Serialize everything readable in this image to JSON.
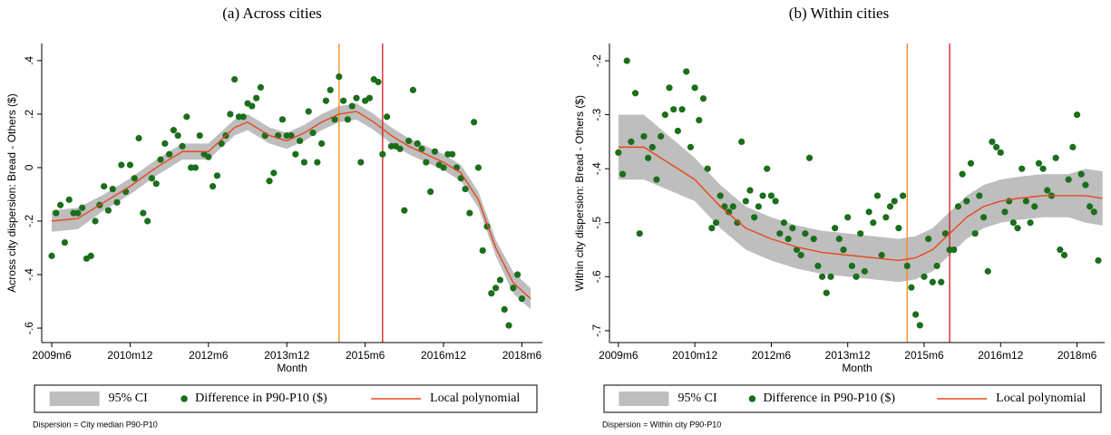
{
  "chart_data": [
    {
      "type": "scatter",
      "title": "(a) Across cities",
      "xlabel": "Month",
      "ylabel": "Across city dispersion: Bread - Others ($)",
      "note": "Dispersion = City median P90-P10",
      "xlim": [
        -2.3,
        112.7
      ],
      "ylim": [
        -0.654,
        0.464
      ],
      "grid": false,
      "xticks": [
        {
          "value": 0,
          "label": "2009m6"
        },
        {
          "value": 18,
          "label": "2010m12"
        },
        {
          "value": 36,
          "label": "2012m6"
        },
        {
          "value": 54,
          "label": "2013m12"
        },
        {
          "value": 72,
          "label": "2015m6"
        },
        {
          "value": 90,
          "label": "2016m12"
        },
        {
          "value": 108,
          "label": "2018m6"
        }
      ],
      "yticks": [
        {
          "value": -0.6,
          "label": "-.6"
        },
        {
          "value": -0.4,
          "label": "-.4"
        },
        {
          "value": -0.2,
          "label": "-.2"
        },
        0,
        {
          "value": 0.2,
          "label": ".2"
        },
        {
          "value": 0.4,
          "label": ".4"
        }
      ],
      "vlines": [
        {
          "x": 66,
          "color": "#f5891f"
        },
        {
          "x": 76,
          "color": "#d7191c"
        }
      ],
      "series": [
        {
          "name": "95% CI",
          "kind": "band",
          "color": "#bebebe",
          "x": [
            0,
            6,
            12,
            18,
            24,
            30,
            36,
            42,
            45,
            50,
            54,
            58,
            62,
            66,
            70,
            74,
            78,
            82,
            86,
            90,
            94,
            98,
            102,
            106,
            110
          ],
          "upper": [
            -0.16,
            -0.15,
            -0.1,
            -0.04,
            0.03,
            0.09,
            0.09,
            0.18,
            0.2,
            0.15,
            0.13,
            0.16,
            0.2,
            0.23,
            0.24,
            0.2,
            0.15,
            0.11,
            0.08,
            0.05,
            0.01,
            -0.09,
            -0.27,
            -0.39,
            -0.45
          ],
          "lower": [
            -0.24,
            -0.23,
            -0.16,
            -0.1,
            -0.03,
            0.03,
            0.03,
            0.12,
            0.14,
            0.09,
            0.07,
            0.1,
            0.14,
            0.17,
            0.18,
            0.14,
            0.09,
            0.05,
            0.02,
            -0.01,
            -0.05,
            -0.15,
            -0.33,
            -0.47,
            -0.53
          ]
        },
        {
          "name": "Difference in P90-P10 ($)",
          "kind": "points",
          "color": "#1b6e1b",
          "x": [
            0,
            1,
            2,
            3,
            4,
            5,
            6,
            7,
            8,
            9,
            10,
            11,
            12,
            13,
            14,
            15,
            16,
            17,
            18,
            19,
            20,
            21,
            22,
            23,
            24,
            25,
            26,
            27,
            28,
            29,
            30,
            31,
            32,
            33,
            34,
            35,
            36,
            37,
            38,
            39,
            40,
            41,
            42,
            43,
            44,
            45,
            46,
            47,
            48,
            49,
            50,
            51,
            52,
            53,
            54,
            55,
            56,
            57,
            58,
            59,
            60,
            61,
            62,
            63,
            64,
            65,
            66,
            67,
            68,
            69,
            70,
            71,
            72,
            73,
            74,
            75,
            76,
            77,
            78,
            79,
            80,
            81,
            82,
            83,
            84,
            85,
            86,
            87,
            88,
            89,
            90,
            91,
            92,
            93,
            94,
            95,
            96,
            97,
            98,
            99,
            100,
            101,
            102,
            103,
            104,
            105,
            106,
            107,
            108
          ],
          "values": [
            -0.33,
            -0.17,
            -0.14,
            -0.28,
            -0.12,
            -0.17,
            -0.17,
            -0.15,
            -0.34,
            -0.33,
            -0.2,
            -0.14,
            -0.07,
            -0.16,
            -0.08,
            -0.13,
            0.01,
            -0.09,
            0.01,
            -0.04,
            0.11,
            -0.17,
            -0.2,
            -0.04,
            -0.06,
            0.03,
            0.09,
            0.05,
            0.14,
            0.12,
            0.08,
            0.19,
            0.0,
            0.0,
            0.12,
            0.05,
            0.04,
            -0.07,
            -0.03,
            0.09,
            0.12,
            0.2,
            0.33,
            0.19,
            0.19,
            0.24,
            0.23,
            0.26,
            0.3,
            0.12,
            -0.05,
            -0.02,
            0.12,
            0.18,
            0.12,
            0.12,
            0.05,
            0.1,
            0.02,
            0.21,
            0.13,
            0.02,
            0.09,
            0.25,
            0.29,
            0.18,
            0.34,
            0.25,
            0.18,
            0.23,
            0.26,
            0.02,
            0.25,
            0.26,
            0.33,
            0.32,
            0.05,
            0.19,
            0.08,
            0.08,
            0.07,
            -0.16,
            0.1,
            0.29,
            0.09,
            0.07,
            0.02,
            -0.09,
            0.06,
            0.01,
            0.0,
            0.05,
            0.05,
            0.0,
            -0.04,
            -0.08,
            -0.17,
            0.17,
            0.0,
            -0.31,
            -0.22,
            -0.47,
            -0.45,
            -0.42,
            -0.53,
            -0.59,
            -0.45,
            -0.4,
            -0.49
          ]
        },
        {
          "name": "Local polynomial",
          "kind": "line",
          "color": "#e8481c",
          "x": [
            0,
            6,
            12,
            18,
            24,
            30,
            36,
            42,
            45,
            50,
            54,
            58,
            62,
            66,
            70,
            74,
            78,
            82,
            86,
            90,
            94,
            98,
            102,
            106,
            110
          ],
          "values": [
            -0.2,
            -0.19,
            -0.13,
            -0.07,
            0.0,
            0.06,
            0.06,
            0.15,
            0.17,
            0.12,
            0.1,
            0.13,
            0.17,
            0.2,
            0.21,
            0.17,
            0.12,
            0.08,
            0.05,
            0.02,
            -0.02,
            -0.12,
            -0.3,
            -0.43,
            -0.49
          ]
        }
      ]
    },
    {
      "type": "scatter",
      "title": "(b) Within cities",
      "xlabel": "Month",
      "ylabel": "Within city dispersion: Bread - Others ($)",
      "note": "Dispersion = Within city P90-P10",
      "xlim": [
        -2.1,
        114.5
      ],
      "ylim": [
        -0.722,
        -0.168
      ],
      "grid": false,
      "xticks": [
        {
          "value": 0,
          "label": "2009m6"
        },
        {
          "value": 18,
          "label": "2010m12"
        },
        {
          "value": 36,
          "label": "2012m6"
        },
        {
          "value": 54,
          "label": "2013m12"
        },
        {
          "value": 72,
          "label": "2015m6"
        },
        {
          "value": 90,
          "label": "2016m12"
        },
        {
          "value": 108,
          "label": "2018m6"
        }
      ],
      "yticks": [
        {
          "value": -0.7,
          "label": "-.7"
        },
        {
          "value": -0.6,
          "label": "-.6"
        },
        {
          "value": -0.5,
          "label": "-.5"
        },
        {
          "value": -0.4,
          "label": "-.4"
        },
        {
          "value": -0.3,
          "label": "-.3"
        },
        {
          "value": -0.2,
          "label": "-.2"
        }
      ],
      "vlines": [
        {
          "x": 68,
          "color": "#f5891f"
        },
        {
          "x": 78,
          "color": "#d7191c"
        }
      ],
      "series": [
        {
          "name": "95% CI",
          "kind": "band",
          "color": "#bebebe",
          "x": [
            0,
            6,
            12,
            18,
            24,
            30,
            36,
            42,
            48,
            54,
            60,
            66,
            70,
            74,
            78,
            82,
            86,
            90,
            94,
            100,
            106,
            110,
            114
          ],
          "upper": [
            -0.3,
            -0.3,
            -0.34,
            -0.38,
            -0.43,
            -0.47,
            -0.49,
            -0.505,
            -0.515,
            -0.52,
            -0.525,
            -0.53,
            -0.525,
            -0.51,
            -0.48,
            -0.45,
            -0.43,
            -0.42,
            -0.415,
            -0.41,
            -0.41,
            -0.4,
            -0.405
          ],
          "lower": [
            -0.42,
            -0.42,
            -0.44,
            -0.46,
            -0.51,
            -0.55,
            -0.57,
            -0.585,
            -0.595,
            -0.6,
            -0.605,
            -0.61,
            -0.605,
            -0.59,
            -0.56,
            -0.53,
            -0.51,
            -0.5,
            -0.495,
            -0.49,
            -0.49,
            -0.5,
            -0.505
          ]
        },
        {
          "name": "Difference in P90-P10 ($)",
          "kind": "points",
          "color": "#1b6e1b",
          "x": [
            0,
            1,
            2,
            3,
            4,
            5,
            6,
            7,
            8,
            9,
            10,
            11,
            12,
            13,
            14,
            15,
            16,
            17,
            18,
            19,
            20,
            21,
            22,
            23,
            24,
            25,
            26,
            27,
            28,
            29,
            30,
            31,
            32,
            33,
            34,
            35,
            36,
            37,
            38,
            39,
            40,
            41,
            42,
            43,
            44,
            45,
            46,
            47,
            48,
            49,
            50,
            51,
            52,
            53,
            54,
            55,
            56,
            57,
            58,
            59,
            60,
            61,
            62,
            63,
            64,
            65,
            66,
            67,
            68,
            69,
            70,
            71,
            72,
            73,
            74,
            75,
            76,
            77,
            78,
            79,
            80,
            81,
            82,
            83,
            84,
            85,
            86,
            87,
            88,
            89,
            90,
            91,
            92,
            93,
            94,
            95,
            96,
            97,
            98,
            99,
            100,
            101,
            102,
            103,
            104,
            105,
            106,
            107,
            108,
            109,
            110,
            111,
            112,
            113
          ],
          "values": [
            -0.37,
            -0.41,
            -0.2,
            -0.35,
            -0.26,
            -0.52,
            -0.34,
            -0.38,
            -0.36,
            -0.42,
            -0.34,
            -0.3,
            -0.25,
            -0.29,
            -0.33,
            -0.29,
            -0.22,
            -0.36,
            -0.25,
            -0.31,
            -0.27,
            -0.4,
            -0.51,
            -0.5,
            -0.45,
            -0.47,
            -0.48,
            -0.47,
            -0.5,
            -0.35,
            -0.46,
            -0.44,
            -0.49,
            -0.47,
            -0.45,
            -0.4,
            -0.45,
            -0.46,
            -0.52,
            -0.5,
            -0.53,
            -0.51,
            -0.55,
            -0.56,
            -0.52,
            -0.38,
            -0.53,
            -0.58,
            -0.6,
            -0.63,
            -0.6,
            -0.51,
            -0.53,
            -0.55,
            -0.49,
            -0.58,
            -0.6,
            -0.52,
            -0.59,
            -0.48,
            -0.5,
            -0.45,
            -0.56,
            -0.49,
            -0.47,
            -0.46,
            -0.51,
            -0.45,
            -0.58,
            -0.62,
            -0.67,
            -0.69,
            -0.6,
            -0.53,
            -0.61,
            -0.58,
            -0.61,
            -0.52,
            -0.55,
            -0.55,
            -0.47,
            -0.41,
            -0.46,
            -0.39,
            -0.52,
            -0.45,
            -0.49,
            -0.59,
            -0.35,
            -0.36,
            -0.37,
            -0.48,
            -0.46,
            -0.5,
            -0.51,
            -0.4,
            -0.46,
            -0.5,
            -0.47,
            -0.39,
            -0.4,
            -0.44,
            -0.45,
            -0.38,
            -0.55,
            -0.56,
            -0.42,
            -0.36,
            -0.3,
            -0.41,
            -0.43,
            -0.47,
            -0.48,
            -0.57
          ]
        },
        {
          "name": "Local polynomial",
          "kind": "line",
          "color": "#e8481c",
          "x": [
            0,
            6,
            12,
            18,
            24,
            30,
            36,
            42,
            48,
            54,
            60,
            66,
            70,
            74,
            78,
            82,
            86,
            90,
            94,
            100,
            106,
            110,
            114
          ],
          "values": [
            -0.36,
            -0.36,
            -0.39,
            -0.42,
            -0.47,
            -0.51,
            -0.53,
            -0.545,
            -0.555,
            -0.56,
            -0.565,
            -0.57,
            -0.565,
            -0.55,
            -0.52,
            -0.49,
            -0.47,
            -0.46,
            -0.455,
            -0.45,
            -0.45,
            -0.45,
            -0.455
          ]
        }
      ]
    }
  ]
}
